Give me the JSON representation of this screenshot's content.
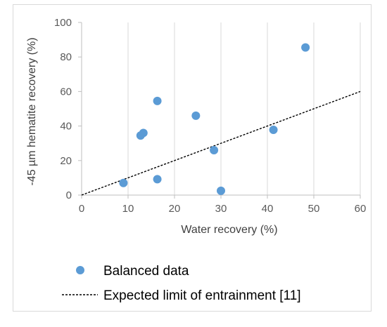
{
  "chart_data": {
    "type": "scatter",
    "title": "",
    "xlabel": "Water recovery (%)",
    "ylabel": "-45 µm hematite recovery (%)",
    "xlim": [
      0,
      60
    ],
    "ylim": [
      0,
      100
    ],
    "xticks": [
      "0",
      "10",
      "20",
      "30",
      "40",
      "50",
      "60"
    ],
    "yticks": [
      "0",
      "20",
      "40",
      "60",
      "80",
      "100"
    ],
    "grid": "vertical",
    "legend_position": "bottom",
    "series": [
      {
        "name": "Balanced data",
        "kind": "points",
        "color": "#5b9bd5",
        "points": [
          {
            "x": 9.0,
            "y": 7.0
          },
          {
            "x": 12.7,
            "y": 34.5
          },
          {
            "x": 13.3,
            "y": 36.0
          },
          {
            "x": 16.3,
            "y": 54.5
          },
          {
            "x": 16.3,
            "y": 9.2
          },
          {
            "x": 24.6,
            "y": 46.0
          },
          {
            "x": 28.5,
            "y": 26.0
          },
          {
            "x": 30.0,
            "y": 2.5
          },
          {
            "x": 41.3,
            "y": 37.8
          },
          {
            "x": 48.2,
            "y": 85.5
          }
        ]
      },
      {
        "name": "Expected limit of entrainment [11]",
        "kind": "dashed-line",
        "color": "#000000",
        "points": [
          {
            "x": 0,
            "y": 0
          },
          {
            "x": 60,
            "y": 60
          }
        ]
      }
    ]
  }
}
